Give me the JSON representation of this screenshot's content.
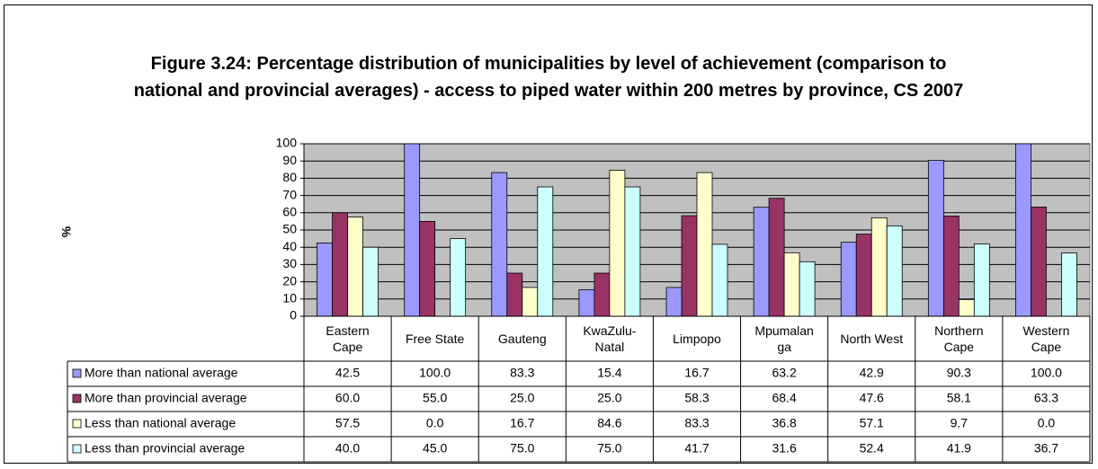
{
  "chart_data": {
    "type": "bar",
    "title": "Figure 3.24: Percentage distribution of municipalities by level of achievement (comparison to national and provincial averages) - access to piped water within 200 metres by province, CS 2007",
    "y_label": "%",
    "categories": [
      "Eastern Cape",
      "Free State",
      "Gauteng",
      "KwaZulu-Natal",
      "Limpopo",
      "Mpumalanga",
      "North West",
      "Northern Cape",
      "Western Cape"
    ],
    "series": [
      {
        "name": "More than national average",
        "color": "#9999ff",
        "values": [
          42.5,
          100,
          83.3,
          15.4,
          16.7,
          63.2,
          42.9,
          90.3,
          100
        ],
        "value_labels": [
          "42.5",
          "100.0",
          "83.3",
          "15.4",
          "16.7",
          "63.2",
          "42.9",
          "90.3",
          "100.0"
        ]
      },
      {
        "name": "More than provincial average",
        "color": "#993366",
        "values": [
          60,
          55,
          25,
          25,
          58.3,
          68.4,
          47.6,
          58.1,
          63.3
        ],
        "value_labels": [
          "60.0",
          "55.0",
          "25.0",
          "25.0",
          "58.3",
          "68.4",
          "47.6",
          "58.1",
          "63.3"
        ]
      },
      {
        "name": "Less than national average",
        "color": "#ffffcc",
        "values": [
          57.5,
          0,
          16.7,
          84.6,
          83.3,
          36.8,
          57.1,
          9.7,
          0
        ],
        "value_labels": [
          "57.5",
          "0.0",
          "16.7",
          "84.6",
          "83.3",
          "36.8",
          "57.1",
          "9.7",
          "0.0"
        ]
      },
      {
        "name": "Less than provincial average",
        "color": "#ccffff",
        "values": [
          40,
          45,
          75,
          75,
          41.7,
          31.6,
          52.4,
          41.9,
          36.7
        ],
        "value_labels": [
          "40.0",
          "45.0",
          "75.0",
          "75.0",
          "41.7",
          "31.6",
          "52.4",
          "41.9",
          "36.7"
        ]
      }
    ],
    "ylim": [
      0,
      100
    ],
    "yticks": [
      0,
      10,
      20,
      30,
      40,
      50,
      60,
      70,
      80,
      90,
      100
    ],
    "grid": true,
    "plot_background": "#c0c0c0"
  }
}
